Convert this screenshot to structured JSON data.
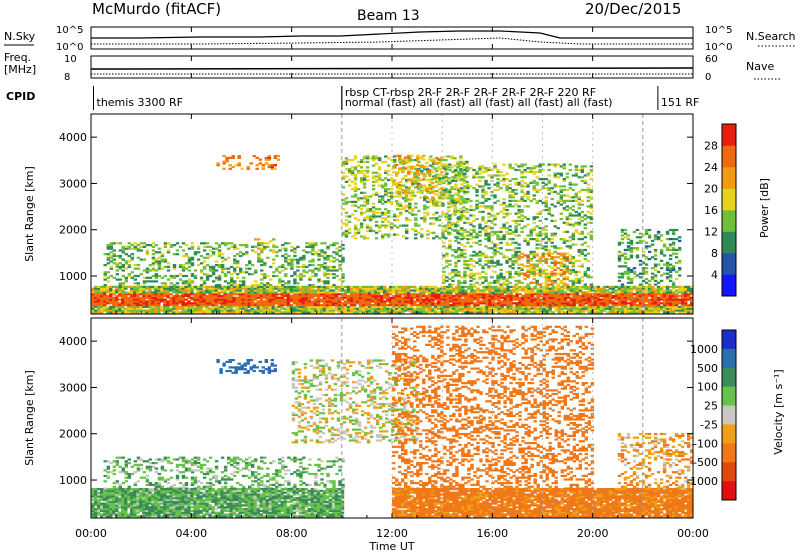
{
  "header": {
    "site": "McMurdo (fitACF)",
    "beam": "Beam 13",
    "date": "20/Dec/2015"
  },
  "noise_panel": {
    "left_label": "N.Sky",
    "right_label": "N.Search",
    "y_ticks_left": [
      "10^5",
      "10^0"
    ],
    "y_ticks_right": [
      "10^5",
      "10^0"
    ]
  },
  "freq_panel": {
    "left_label_1": "Freq.",
    "left_label_2": "[MHz]",
    "right_label": "Nave",
    "y_ticks_left": [
      "10",
      "8"
    ],
    "y_ticks_right": [
      "60",
      "0"
    ]
  },
  "cpid": {
    "label": "CPID",
    "entries": [
      {
        "hour": 0.1,
        "row": 2,
        "text": "themis 3300 RF"
      },
      {
        "hour": 10.0,
        "row": 1,
        "text": "rbsp CT-rbsp 2R-F 2R-F 2R-F 2R-F 2R-F 220 RF"
      },
      {
        "hour": 10.0,
        "row": 2,
        "text": "normal (fast) all (fast) all (fast) all (fast) all (fast)"
      },
      {
        "hour": 22.6,
        "row": 2,
        "text": "151 RF"
      }
    ]
  },
  "axes": {
    "x_ticks": [
      "00:00",
      "04:00",
      "08:00",
      "12:00",
      "16:00",
      "20:00",
      "00:00"
    ],
    "xlabel": "Time UT",
    "ylabel": "Slant Range [km]",
    "y_ticks": [
      "1000",
      "2000",
      "3000",
      "4000"
    ]
  },
  "power_colorbar": {
    "label": "Power [dB]",
    "ticks": [
      "4",
      "8",
      "12",
      "16",
      "20",
      "24",
      "28"
    ],
    "colors": [
      "#1414ff",
      "#2255aa",
      "#2e8b57",
      "#6fbf3a",
      "#e8d21e",
      "#f29a12",
      "#ee6a0e",
      "#e81e0e"
    ]
  },
  "velocity_colorbar": {
    "label": "Velocity [m s⁻¹]",
    "ticks": [
      "1000",
      "500",
      "100",
      "25",
      "-25",
      "-100",
      "-500",
      "-1000"
    ],
    "colors": [
      "#1a2ec8",
      "#2c6fb0",
      "#3a8a5a",
      "#66c24a",
      "#c8c8c0",
      "#f0a018",
      "#f07818",
      "#e04a10",
      "#e01010"
    ]
  },
  "chart_data": [
    {
      "type": "heatmap",
      "title": "Power",
      "xlabel": "Time UT",
      "ylabel": "Slant Range [km]",
      "xlim": [
        0,
        24
      ],
      "ylim": [
        180,
        4500
      ],
      "colorbar": "Power [dB]",
      "regions": [
        {
          "t": [
            0,
            24
          ],
          "r": [
            200,
            750
          ],
          "value": 26
        },
        {
          "t": [
            0.5,
            10
          ],
          "r": [
            750,
            1700
          ],
          "value": 13
        },
        {
          "t": [
            5,
            7.5
          ],
          "r": [
            3300,
            3600
          ],
          "value": 24
        },
        {
          "t": [
            6.5,
            7.3
          ],
          "r": [
            1500,
            1800
          ],
          "value": 18
        },
        {
          "t": [
            10,
            15
          ],
          "r": [
            1800,
            3600
          ],
          "value": 15
        },
        {
          "t": [
            12,
            14
          ],
          "r": [
            2600,
            3600
          ],
          "value": 20
        },
        {
          "t": [
            14,
            20
          ],
          "r": [
            800,
            3400
          ],
          "value": 14
        },
        {
          "t": [
            17,
            19
          ],
          "r": [
            800,
            1500
          ],
          "value": 22
        },
        {
          "t": [
            21,
            23.5
          ],
          "r": [
            800,
            2000
          ],
          "value": 12
        }
      ]
    },
    {
      "type": "heatmap",
      "title": "Velocity",
      "xlabel": "Time UT",
      "ylabel": "Slant Range [km]",
      "xlim": [
        0,
        24
      ],
      "ylim": [
        180,
        4500
      ],
      "colorbar": "Velocity [m s⁻¹]",
      "regions": [
        {
          "t": [
            0,
            10
          ],
          "r": [
            200,
            800
          ],
          "value": 90
        },
        {
          "t": [
            0.5,
            10
          ],
          "r": [
            800,
            1500
          ],
          "value": 70
        },
        {
          "t": [
            5,
            7.3
          ],
          "r": [
            3300,
            3600
          ],
          "value": 800
        },
        {
          "t": [
            8,
            13
          ],
          "r": [
            1800,
            3600
          ],
          "value": 0
        },
        {
          "t": [
            12,
            24
          ],
          "r": [
            200,
            800
          ],
          "value": -150
        },
        {
          "t": [
            12,
            20
          ],
          "r": [
            800,
            4300
          ],
          "value": -300
        },
        {
          "t": [
            21,
            24
          ],
          "r": [
            800,
            2000
          ],
          "value": -80
        }
      ]
    }
  ]
}
